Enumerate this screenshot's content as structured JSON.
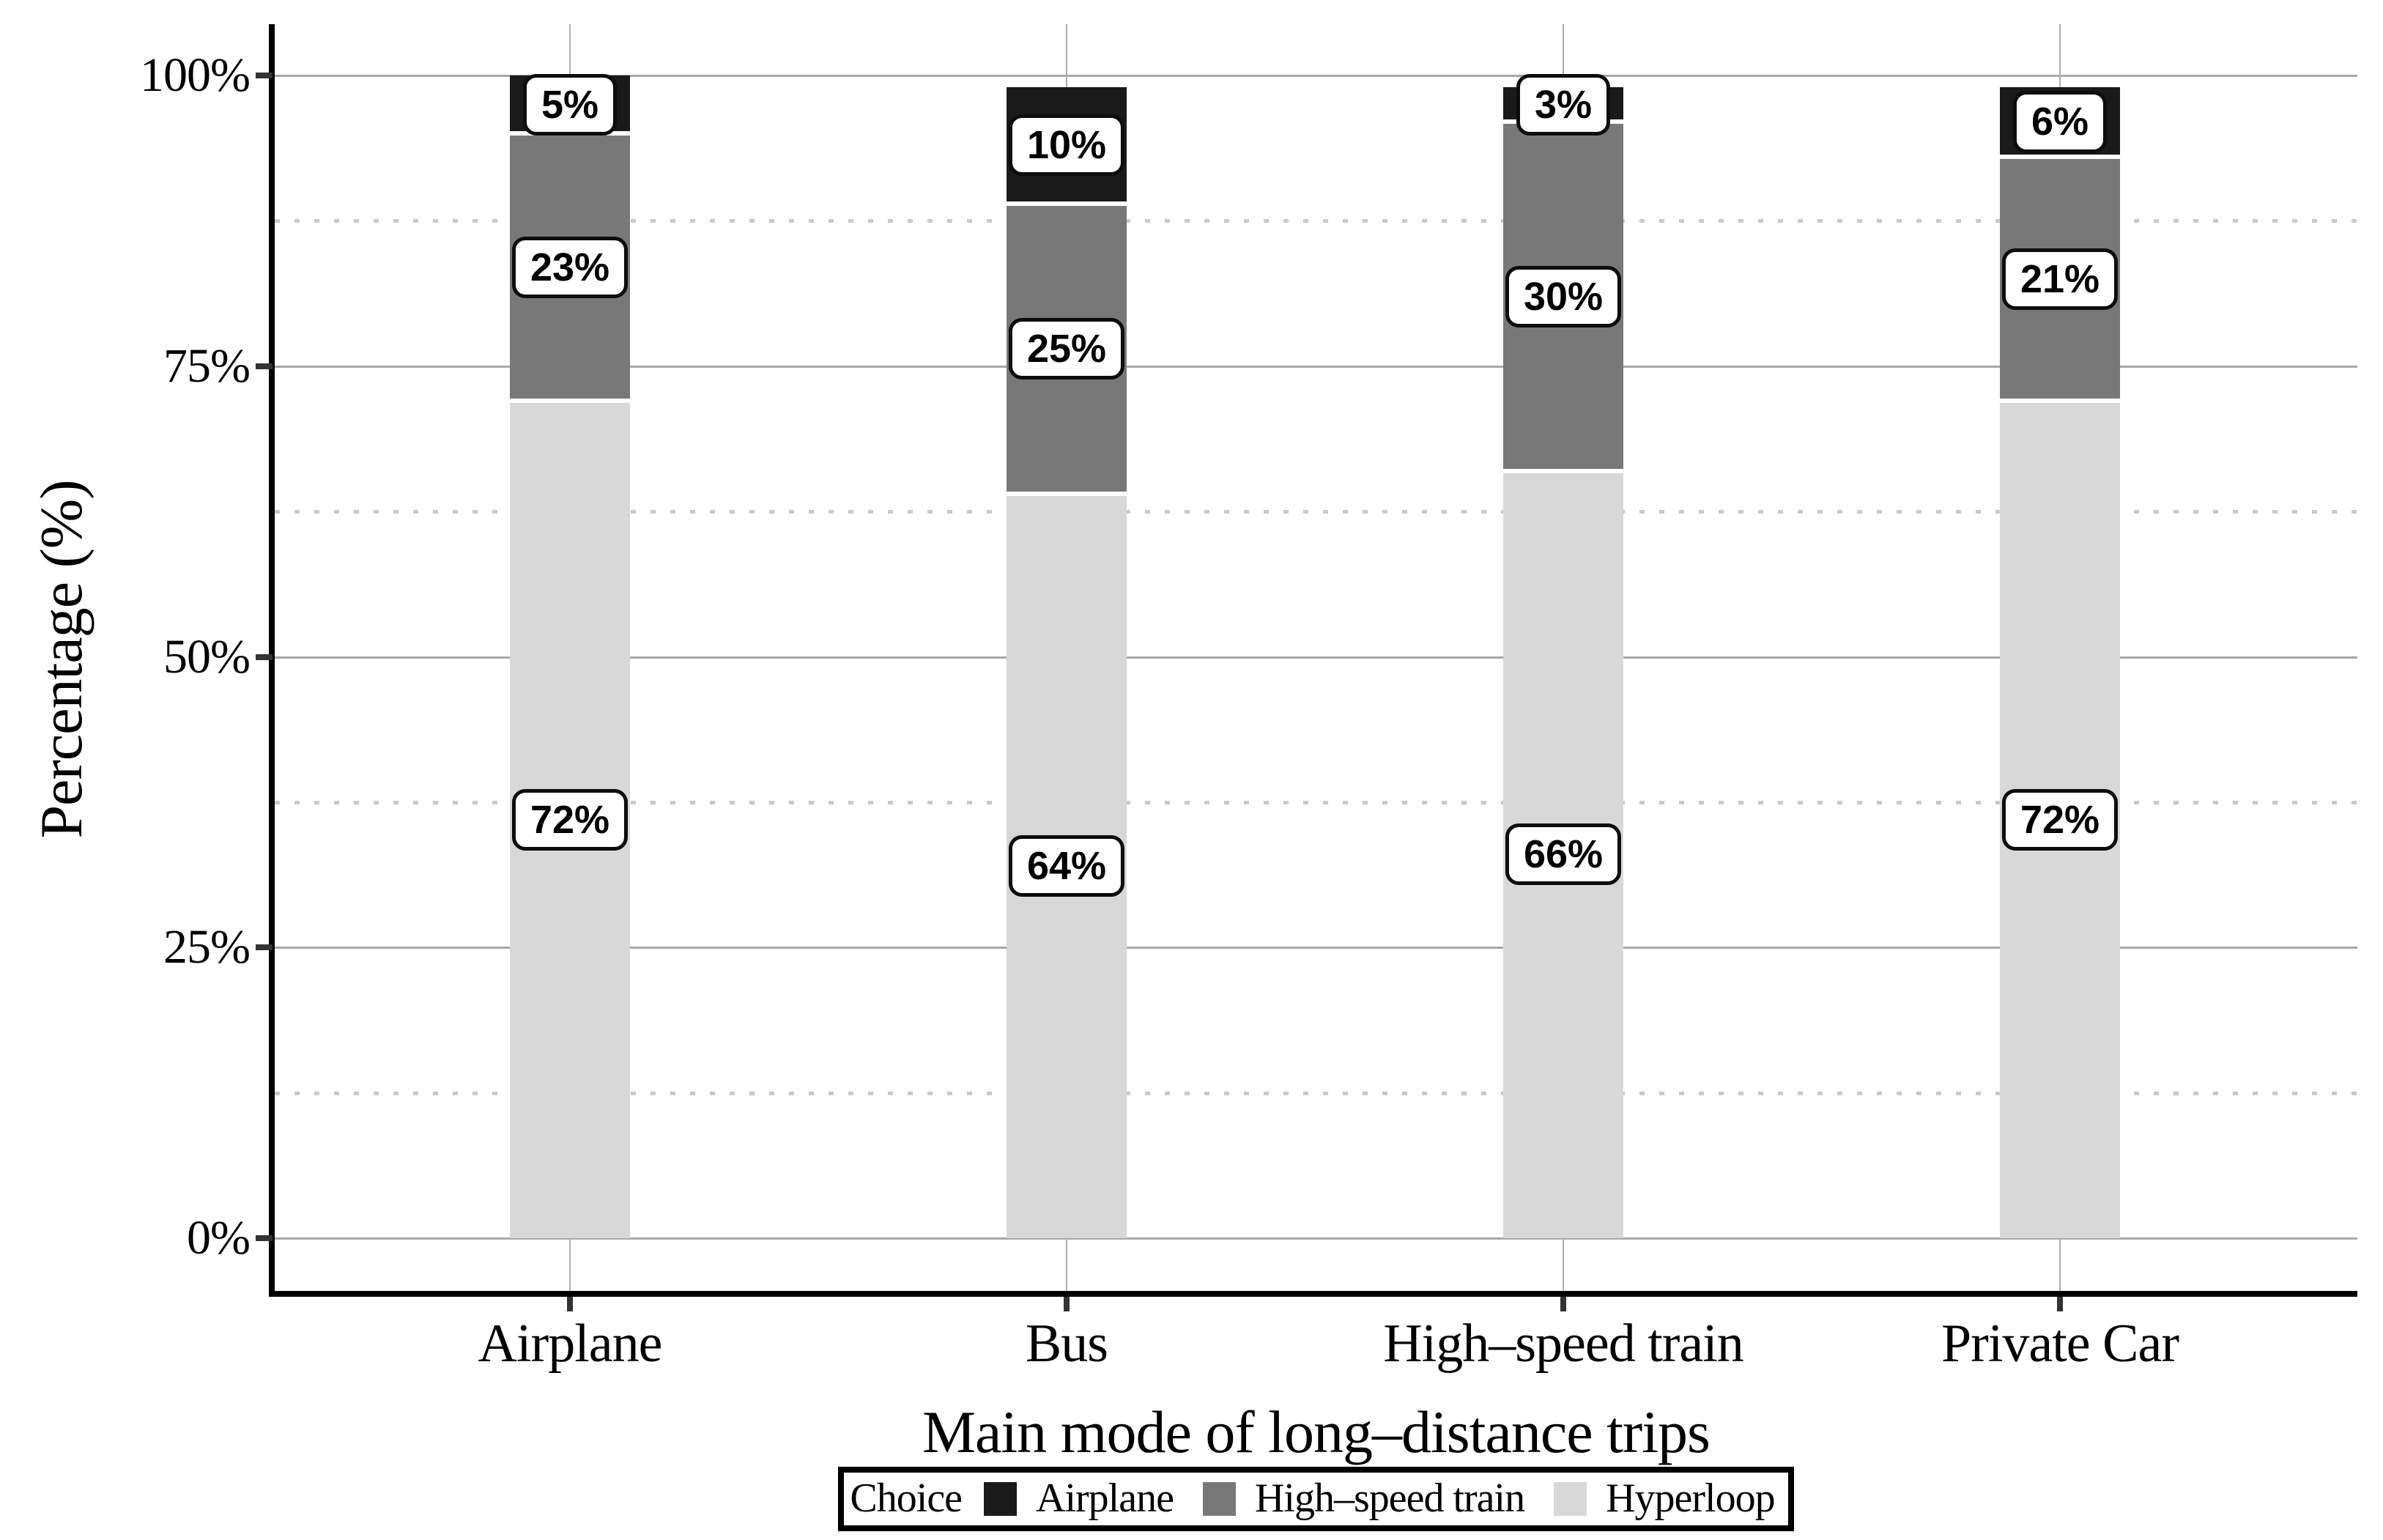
{
  "chart_data": {
    "type": "bar",
    "stacked": true,
    "percent_scale": true,
    "title": "",
    "xlabel": "Main mode of long–distance trips",
    "ylabel": "Percentage (%)",
    "categories": [
      "Airplane",
      "Bus",
      "High–speed train",
      "Private Car"
    ],
    "series": [
      {
        "name": "Hyperloop",
        "color": "#d8d8d8",
        "values": [
          72,
          64,
          66,
          72
        ],
        "labels": [
          "72%",
          "64%",
          "66%",
          "72%"
        ]
      },
      {
        "name": "High–speed train",
        "color": "#787878",
        "values": [
          23,
          25,
          30,
          21
        ],
        "labels": [
          "23%",
          "25%",
          "30%",
          "21%"
        ]
      },
      {
        "name": "Airplane",
        "color": "#1a1a1a",
        "values": [
          5,
          10,
          3,
          6
        ],
        "labels": [
          "5%",
          "10%",
          "3%",
          "6%"
        ]
      }
    ],
    "ylim": [
      0,
      100
    ],
    "y_ticks": [
      {
        "label": "0%",
        "value": 0
      },
      {
        "label": "25%",
        "value": 25
      },
      {
        "label": "50%",
        "value": 50
      },
      {
        "label": "75%",
        "value": 75
      },
      {
        "label": "100%",
        "value": 100
      }
    ],
    "y_minor_ticks": [
      12.5,
      37.5,
      62.5,
      87.5
    ],
    "grid": "horizontal major solid, minor dotted, vertical at categories",
    "legend_position": "bottom"
  },
  "legend": {
    "title": "Choice",
    "entries": [
      {
        "label": "Airplane",
        "color": "#1a1a1a"
      },
      {
        "label": "High–speed train",
        "color": "#787878"
      },
      {
        "label": "Hyperloop",
        "color": "#d8d8d8"
      }
    ]
  },
  "colors": {
    "background": "#ffffff",
    "axis_line": "#000000",
    "tick_mark": "#333333",
    "grid_major": "#a8a8a8",
    "grid_minor": "#c9c9c9",
    "label_box_bg": "#ffffff",
    "label_box_border": "#0d0d0d"
  }
}
